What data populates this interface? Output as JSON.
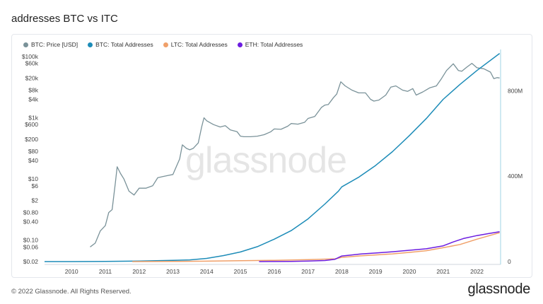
{
  "page": {
    "title": "addresses BTC vs ITC",
    "footer": "© 2022 Glassnode. All Rights Reserved.",
    "brand": "glassnode",
    "watermark": "glassnode"
  },
  "chart_data": {
    "type": "line",
    "title": "addresses BTC vs ITC",
    "legend_placement": "top-left",
    "grid": false,
    "x_axis": {
      "range": [
        2009.2,
        2022.7
      ],
      "ticks": [
        "2010",
        "2011",
        "2012",
        "2013",
        "2014",
        "2015",
        "2016",
        "2017",
        "2018",
        "2019",
        "2020",
        "2021",
        "2022"
      ]
    },
    "y_left": {
      "scale": "log",
      "range": [
        0.02,
        100000
      ],
      "tick_labels": [
        "$100k",
        "$60k",
        "$20k",
        "$8k",
        "$4k",
        "$1k",
        "$600",
        "$200",
        "$80",
        "$40",
        "$10",
        "$6",
        "$2",
        "$0.80",
        "$0.40",
        "$0.10",
        "$0.06",
        "$0.02"
      ],
      "tick_values": [
        100000,
        60000,
        20000,
        8000,
        4000,
        1000,
        600,
        200,
        80,
        40,
        10,
        6,
        2,
        0.8,
        0.4,
        0.1,
        0.06,
        0.02
      ]
    },
    "y_right": {
      "scale": "linear",
      "range": [
        0,
        1000000000
      ],
      "tick_labels": [
        "800M",
        "400M",
        "0"
      ],
      "tick_values": [
        800000000,
        400000000,
        0
      ]
    },
    "series": [
      {
        "name": "BTC: Price [USD]",
        "axis": "left",
        "color": "#7a9299",
        "x": [
          2010.55,
          2010.7,
          2010.85,
          2011.0,
          2011.1,
          2011.2,
          2011.3,
          2011.35,
          2011.45,
          2011.55,
          2011.7,
          2011.85,
          2012.0,
          2012.2,
          2012.4,
          2012.55,
          2012.7,
          2012.85,
          2013.0,
          2013.1,
          2013.2,
          2013.28,
          2013.4,
          2013.5,
          2013.6,
          2013.75,
          2013.85,
          2013.92,
          2014.0,
          2014.2,
          2014.4,
          2014.55,
          2014.7,
          2014.9,
          2015.0,
          2015.1,
          2015.3,
          2015.5,
          2015.7,
          2015.9,
          2016.0,
          2016.2,
          2016.4,
          2016.5,
          2016.7,
          2016.9,
          2017.0,
          2017.2,
          2017.4,
          2017.5,
          2017.6,
          2017.75,
          2017.85,
          2017.97,
          2018.1,
          2018.3,
          2018.5,
          2018.7,
          2018.85,
          2018.95,
          2019.1,
          2019.3,
          2019.45,
          2019.6,
          2019.8,
          2019.95,
          2020.1,
          2020.2,
          2020.4,
          2020.6,
          2020.8,
          2020.95,
          2021.1,
          2021.3,
          2021.45,
          2021.55,
          2021.7,
          2021.85,
          2022.0,
          2022.2,
          2022.4,
          2022.5,
          2022.6,
          2022.67
        ],
        "y": [
          0.06,
          0.08,
          0.2,
          0.3,
          0.8,
          1.0,
          8,
          25,
          15,
          10,
          4,
          3,
          5,
          5,
          6,
          11,
          12,
          13,
          14,
          25,
          45,
          130,
          100,
          90,
          100,
          150,
          500,
          1000,
          800,
          600,
          500,
          550,
          400,
          350,
          250,
          240,
          240,
          250,
          280,
          350,
          430,
          420,
          530,
          650,
          620,
          710,
          950,
          1100,
          2200,
          2600,
          2700,
          4500,
          6000,
          15000,
          11000,
          8000,
          6500,
          6500,
          4000,
          3500,
          3800,
          5500,
          10000,
          11000,
          8000,
          7300,
          9000,
          5500,
          7000,
          9500,
          11000,
          19000,
          35000,
          58000,
          35000,
          33000,
          45000,
          60000,
          43000,
          40000,
          31000,
          19000,
          20500,
          20000
        ]
      },
      {
        "name": "BTC: Total Addresses",
        "axis": "right",
        "color": "#1d8cb8",
        "x": [
          2009.2,
          2010,
          2011,
          2012,
          2012.5,
          2013,
          2013.5,
          2014,
          2014.5,
          2015,
          2015.5,
          2016,
          2016.5,
          2017,
          2017.5,
          2017.9,
          2018,
          2018.5,
          2019,
          2019.5,
          2020,
          2020.5,
          2021,
          2021.5,
          2022,
          2022.67
        ],
        "y": [
          0,
          0,
          1000000,
          2500000,
          4000000,
          5500000,
          8000000,
          15000000,
          28000000,
          45000000,
          70000000,
          105000000,
          145000000,
          200000000,
          270000000,
          330000000,
          350000000,
          395000000,
          450000000,
          515000000,
          590000000,
          670000000,
          760000000,
          830000000,
          895000000,
          975000000
        ]
      },
      {
        "name": "LTC: Total Addresses",
        "axis": "right",
        "color": "#f0a06a",
        "x": [
          2011.8,
          2013,
          2014,
          2015,
          2016,
          2017,
          2017.8,
          2018,
          2018.5,
          2019,
          2019.5,
          2020,
          2020.5,
          2021,
          2021.5,
          2022,
          2022.67
        ],
        "y": [
          0,
          800000,
          2000000,
          4000000,
          6000000,
          9000000,
          13000000,
          20000000,
          26000000,
          31000000,
          36000000,
          43000000,
          51000000,
          65000000,
          80000000,
          105000000,
          135000000
        ]
      },
      {
        "name": "ETH: Total Addresses",
        "axis": "right",
        "color": "#6c1de0",
        "x": [
          2015.55,
          2016,
          2016.5,
          2017,
          2017.5,
          2017.8,
          2018,
          2018.3,
          2018.6,
          2019,
          2019.5,
          2020,
          2020.5,
          2021,
          2021.3,
          2021.6,
          2022,
          2022.3,
          2022.67
        ],
        "y": [
          0,
          200000,
          1000000,
          2500000,
          5000000,
          11000000,
          26000000,
          31000000,
          36000000,
          40000000,
          46000000,
          53000000,
          60000000,
          74000000,
          92000000,
          108000000,
          122000000,
          130000000,
          140000000
        ]
      }
    ]
  }
}
